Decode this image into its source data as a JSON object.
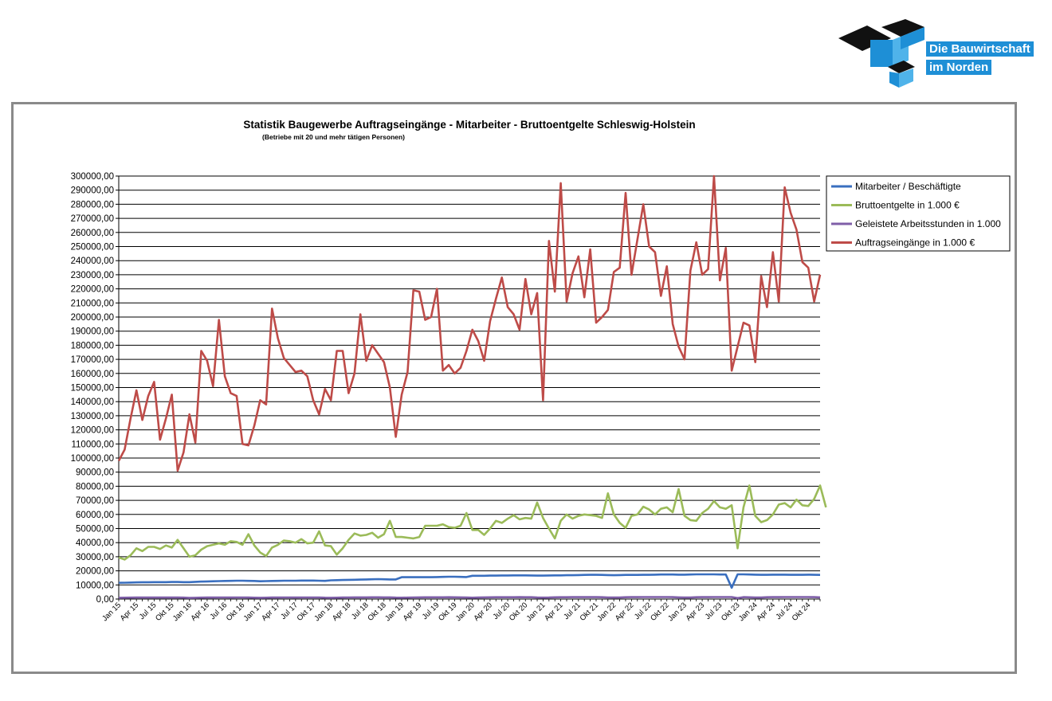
{
  "logo": {
    "line1": "Die Bauwirtschaft",
    "line2": "im Norden",
    "colors": {
      "dark": "#111111",
      "blue": "#1e8fd6",
      "light_blue": "#4fb3ea"
    }
  },
  "chart_data": {
    "type": "line",
    "title": "Statistik Baugewerbe Auftragseingänge - Mitarbeiter - Bruttoentgelte Schleswig-Holstein",
    "subtitle": "(Betriebe mit 20 und mehr tätigen Personen)",
    "xlabel": "",
    "ylabel": "",
    "ylim": [
      0,
      300000
    ],
    "y_step": 10000,
    "y_tick_labels": [
      "0,00",
      "10000,00",
      "20000,00",
      "30000,00",
      "40000,00",
      "50000,00",
      "60000,00",
      "70000,00",
      "80000,00",
      "90000,00",
      "100000,00",
      "110000,00",
      "120000,00",
      "130000,00",
      "140000,00",
      "150000,00",
      "160000,00",
      "170000,00",
      "180000,00",
      "190000,00",
      "200000,00",
      "210000,00",
      "220000,00",
      "230000,00",
      "240000,00",
      "250000,00",
      "260000,00",
      "270000,00",
      "280000,00",
      "290000,00",
      "300000,00"
    ],
    "x_tick_labels": [
      "Jan 15",
      "Apr 15",
      "Jul 15",
      "Okt 15",
      "Jan 16",
      "Apr 16",
      "Jul 16",
      "Okt 16",
      "Jan 17",
      "Apr 17",
      "Jul 17",
      "Okt 17",
      "Jan 18",
      "Apr 18",
      "Jul 18",
      "Okt 18",
      "Jan 19",
      "Apr 19",
      "Jul 19",
      "Okt 19",
      "Jan 20",
      "Apr 20",
      "Jul 20",
      "Okt 20",
      "Jan 21",
      "Apr 21",
      "Jul 21",
      "Okt 21",
      "Jan 22",
      "Apr 22",
      "Jul 22",
      "Okt 22",
      "Jan 23",
      "Apr 23",
      "Jul 23",
      "Okt 23",
      "Jan 24",
      "Apr 24",
      "Jul 24",
      "Okt 24"
    ],
    "x_tick_every": 3,
    "n_points": 120,
    "grid": true,
    "legend_placement": "top-right",
    "series": [
      {
        "name": "Mitarbeiter / Beschäftigte",
        "color": "#3a6fbf",
        "values": [
          11500,
          11600,
          11700,
          11800,
          11900,
          11900,
          12000,
          12000,
          12000,
          12100,
          12100,
          12000,
          12000,
          12200,
          12400,
          12500,
          12600,
          12700,
          12800,
          12900,
          13000,
          13000,
          12900,
          12800,
          12600,
          12700,
          12800,
          12900,
          13000,
          13000,
          13000,
          13100,
          13100,
          13100,
          13000,
          12900,
          13300,
          13400,
          13500,
          13600,
          13700,
          13800,
          13900,
          14000,
          14100,
          14000,
          13900,
          13900,
          15500,
          15500,
          15500,
          15500,
          15500,
          15500,
          15600,
          15700,
          15800,
          15800,
          15700,
          15600,
          16500,
          16500,
          16500,
          16600,
          16600,
          16700,
          16700,
          16800,
          16800,
          16800,
          16700,
          16600,
          16600,
          16700,
          16800,
          16800,
          16900,
          16900,
          17000,
          17100,
          17200,
          17200,
          17100,
          17000,
          16900,
          17000,
          17100,
          17100,
          17100,
          17200,
          17200,
          17300,
          17400,
          17400,
          17400,
          17300,
          17300,
          17400,
          17500,
          17500,
          17500,
          17500,
          17400,
          17400,
          8000,
          17500,
          17500,
          17400,
          17300,
          17200,
          17200,
          17300,
          17300,
          17300,
          17200,
          17200,
          17200,
          17300,
          17200,
          17100
        ]
      },
      {
        "name": "Bruttoentgelte in 1.000 €",
        "color": "#9bbb59",
        "values": [
          29500,
          28000,
          31000,
          36000,
          34000,
          37000,
          37000,
          35500,
          38000,
          36500,
          42000,
          36000,
          30000,
          31000,
          35000,
          37500,
          38500,
          39500,
          38500,
          41000,
          40500,
          38500,
          46000,
          38000,
          33000,
          30500,
          36500,
          38500,
          41500,
          41000,
          40000,
          42500,
          39500,
          40000,
          48000,
          38000,
          37500,
          31500,
          36000,
          42000,
          46500,
          45000,
          45500,
          47000,
          43500,
          46000,
          55500,
          44000,
          44000,
          43500,
          43000,
          44000,
          52000,
          52000,
          52000,
          53000,
          51000,
          50500,
          52000,
          61000,
          49000,
          49000,
          45500,
          50000,
          55500,
          54000,
          57000,
          59500,
          56500,
          57500,
          57000,
          68500,
          57500,
          50000,
          43000,
          55500,
          60000,
          57000,
          59000,
          60000,
          59500,
          59000,
          57500,
          75000,
          60000,
          54000,
          50500,
          59000,
          60000,
          65500,
          63500,
          60000,
          64000,
          65000,
          61500,
          78000,
          59000,
          56000,
          55500,
          61000,
          64000,
          69500,
          65000,
          64000,
          66500,
          36000,
          65000,
          80500,
          59000,
          54500,
          56000,
          60000,
          67000,
          68000,
          65000,
          70500,
          66500,
          66000,
          71000,
          80500,
          65000
        ]
      },
      {
        "name": "Geleistete Arbeitsstunden in 1.000",
        "color": "#7f5fa8",
        "values": [
          900,
          950,
          1000,
          1050,
          1050,
          1100,
          1100,
          1050,
          1100,
          1150,
          1100,
          1000,
          800,
          900,
          1000,
          1050,
          1100,
          1150,
          1150,
          1100,
          1150,
          1150,
          1100,
          950,
          900,
          950,
          1050,
          1100,
          1150,
          1150,
          1100,
          1150,
          1150,
          1150,
          1150,
          950,
          900,
          950,
          1100,
          1150,
          1200,
          1200,
          1200,
          1250,
          1250,
          1200,
          1200,
          1000,
          950,
          1000,
          1150,
          1200,
          1250,
          1250,
          1250,
          1250,
          1300,
          1250,
          1200,
          1050,
          950,
          1050,
          1200,
          1250,
          1300,
          1300,
          1300,
          1300,
          1350,
          1300,
          1300,
          1100,
          1000,
          1050,
          1250,
          1300,
          1300,
          1350,
          1350,
          1350,
          1350,
          1350,
          1300,
          1150,
          1050,
          1100,
          1300,
          1350,
          1350,
          1400,
          1400,
          1400,
          1400,
          1400,
          1350,
          1200,
          1050,
          1100,
          1300,
          1350,
          1350,
          1400,
          1400,
          1400,
          1400,
          700,
          1350,
          1250,
          1050,
          1100,
          1300,
          1350,
          1350,
          1400,
          1400,
          1400,
          1400,
          1400,
          1350,
          1200
        ]
      },
      {
        "name": "Auftragseingänge in 1.000 €",
        "color": "#be4b48",
        "values": [
          98000,
          106000,
          128000,
          148000,
          127000,
          144000,
          154000,
          113000,
          128000,
          145000,
          91000,
          104000,
          131000,
          111000,
          176000,
          169000,
          151000,
          198000,
          158000,
          146000,
          144000,
          110000,
          109000,
          123000,
          141000,
          138000,
          206000,
          185000,
          171000,
          166000,
          161000,
          162000,
          158000,
          141000,
          131000,
          149000,
          141000,
          176000,
          176000,
          146000,
          160000,
          202000,
          169000,
          180000,
          174000,
          168000,
          150000,
          115000,
          145000,
          161000,
          219000,
          218000,
          198000,
          200000,
          220000,
          162000,
          166000,
          160000,
          164000,
          176000,
          191000,
          183000,
          169000,
          197000,
          213000,
          228000,
          207000,
          202000,
          191000,
          227000,
          202000,
          217000,
          141000,
          254000,
          218000,
          295000,
          211000,
          231000,
          243000,
          214000,
          248000,
          196000,
          200000,
          205000,
          232000,
          235000,
          288000,
          230000,
          255000,
          280000,
          250000,
          246000,
          215000,
          236000,
          195000,
          179000,
          170000,
          233000,
          253000,
          230000,
          234000,
          300000,
          226000,
          249000,
          162000,
          179000,
          196000,
          194000,
          168000,
          229000,
          207000,
          246000,
          211000,
          292000,
          274000,
          262000,
          239000,
          235000,
          211000,
          230000
        ]
      }
    ]
  }
}
